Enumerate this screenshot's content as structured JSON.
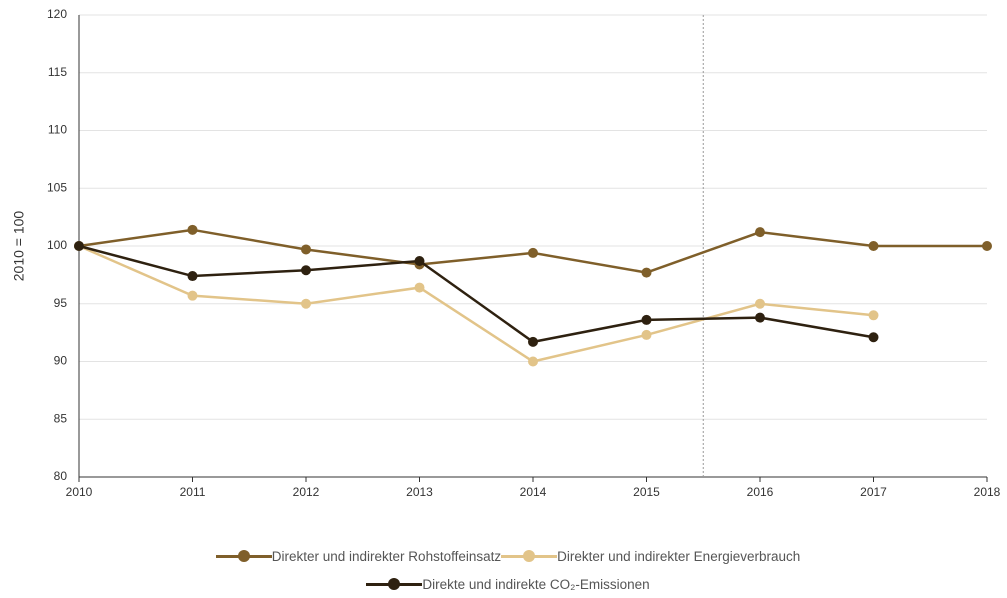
{
  "chart_data": {
    "type": "line",
    "ylabel": "2010 = 100",
    "x": [
      2010,
      2011,
      2012,
      2013,
      2014,
      2015,
      2016,
      2017,
      2018
    ],
    "series": [
      {
        "name": "Direkter und indirekter Rohstoffeinsatz",
        "color": "#7f5f2a",
        "values": [
          100,
          101.4,
          99.7,
          98.4,
          99.4,
          97.7,
          101.2,
          100,
          100
        ]
      },
      {
        "name": "Direkter und indirekter Energieverbrauch",
        "color": "#e2c489",
        "values": [
          100,
          95.7,
          95.0,
          96.4,
          90.0,
          92.3,
          95.0,
          94.0,
          null
        ]
      },
      {
        "name": "Direkte und indirekte CO₂-Emissionen",
        "color": "#2e2110",
        "values": [
          100,
          97.4,
          97.9,
          98.7,
          91.7,
          93.6,
          93.8,
          92.1,
          null
        ]
      }
    ],
    "xlim": [
      2010,
      2018
    ],
    "xticks": [
      2010,
      2011,
      2012,
      2013,
      2014,
      2015,
      2016,
      2017,
      2018
    ],
    "ylim": [
      80,
      120
    ],
    "yticks": [
      80,
      85,
      90,
      95,
      100,
      105,
      110,
      115,
      120
    ],
    "grid": true,
    "marker_x": 2015.5
  }
}
